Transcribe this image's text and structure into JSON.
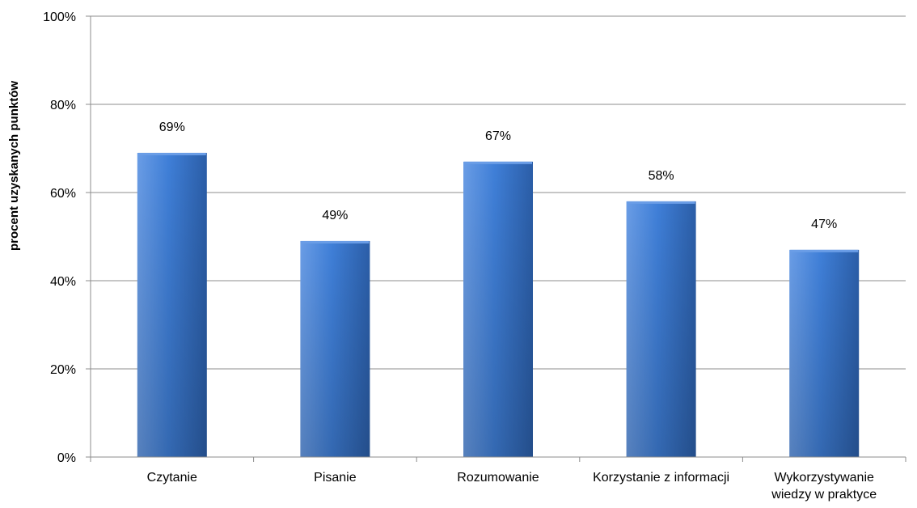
{
  "chart_data": {
    "type": "bar",
    "categories": [
      [
        "Czytanie"
      ],
      [
        "Pisanie"
      ],
      [
        "Rozumowanie"
      ],
      [
        "Korzystanie z informacji"
      ],
      [
        "Wykorzystywanie",
        "wiedzy w praktyce"
      ]
    ],
    "values": [
      69,
      49,
      67,
      58,
      47
    ],
    "data_labels": [
      "69%",
      "49%",
      "67%",
      "58%",
      "47%"
    ],
    "ylabel": "procent uzyskanych punktów",
    "xlabel": "",
    "ylim": [
      0,
      100
    ],
    "y_ticks": [
      {
        "value": 0,
        "label": "0%"
      },
      {
        "value": 20,
        "label": "20%"
      },
      {
        "value": 40,
        "label": "40%"
      },
      {
        "value": 60,
        "label": "60%"
      },
      {
        "value": 80,
        "label": "80%"
      },
      {
        "value": 100,
        "label": "100%"
      }
    ],
    "grid": true,
    "legend": "none",
    "colors": {
      "bar_light": "#6a9de6",
      "bar_mid": "#3f7fd8",
      "bar_dark": "#2b5ea8",
      "grid": "#8c8c8c",
      "axis": "#8c8c8c"
    }
  }
}
